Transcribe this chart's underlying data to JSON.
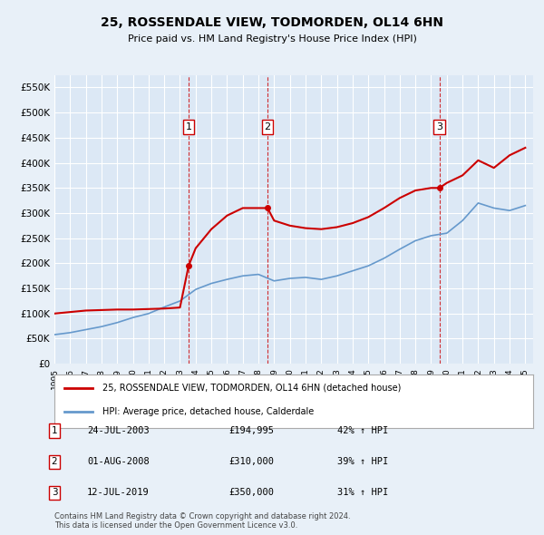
{
  "title": "25, ROSSENDALE VIEW, TODMORDEN, OL14 6HN",
  "subtitle": "Price paid vs. HM Land Registry's House Price Index (HPI)",
  "background_color": "#e8f0f8",
  "plot_bg_color": "#dce8f5",
  "grid_color": "#ffffff",
  "ylim": [
    0,
    575000
  ],
  "yticks": [
    0,
    50000,
    100000,
    150000,
    200000,
    250000,
    300000,
    350000,
    400000,
    450000,
    500000,
    550000
  ],
  "ytick_labels": [
    "£0",
    "£50K",
    "£100K",
    "£150K",
    "£200K",
    "£250K",
    "£300K",
    "£350K",
    "£400K",
    "£450K",
    "£500K",
    "£550K"
  ],
  "legend_line1": "25, ROSSENDALE VIEW, TODMORDEN, OL14 6HN (detached house)",
  "legend_line2": "HPI: Average price, detached house, Calderdale",
  "line1_color": "#cc0000",
  "line2_color": "#6699cc",
  "sale_marker_color": "#cc0000",
  "vline_color": "#cc0000",
  "vline_style": "--",
  "footnote": "Contains HM Land Registry data © Crown copyright and database right 2024.\nThis data is licensed under the Open Government Licence v3.0.",
  "sales": [
    {
      "num": 1,
      "date": "24-JUL-2003",
      "price": 194995,
      "pct": "42%",
      "dir": "↑",
      "x_year": 2003.55
    },
    {
      "num": 2,
      "date": "01-AUG-2008",
      "price": 310000,
      "pct": "39%",
      "dir": "↑",
      "x_year": 2008.58
    },
    {
      "num": 3,
      "date": "12-JUL-2019",
      "price": 350000,
      "pct": "31%",
      "dir": "↑",
      "x_year": 2019.53
    }
  ],
  "hpi_years": [
    1995,
    1996,
    1997,
    1998,
    1999,
    2000,
    2001,
    2002,
    2003,
    2004,
    2005,
    2006,
    2007,
    2008,
    2009,
    2010,
    2011,
    2012,
    2013,
    2014,
    2015,
    2016,
    2017,
    2018,
    2019,
    2020,
    2021,
    2022,
    2023,
    2024,
    2025
  ],
  "hpi_values": [
    58000,
    62000,
    68000,
    74000,
    82000,
    92000,
    100000,
    113000,
    125000,
    148000,
    160000,
    168000,
    175000,
    178000,
    165000,
    170000,
    172000,
    168000,
    175000,
    185000,
    195000,
    210000,
    228000,
    245000,
    255000,
    260000,
    285000,
    320000,
    310000,
    305000,
    315000
  ],
  "price_line_years": [
    1995,
    1996,
    1997,
    1998,
    1999,
    2000,
    2001,
    2002,
    2003,
    2003.55,
    2004,
    2005,
    2006,
    2007,
    2008,
    2008.58,
    2009,
    2010,
    2011,
    2012,
    2013,
    2014,
    2015,
    2016,
    2017,
    2018,
    2019,
    2019.53,
    2020,
    2021,
    2022,
    2023,
    2024,
    2025
  ],
  "price_line_values": [
    100000,
    103000,
    106000,
    107000,
    108000,
    108000,
    109000,
    110000,
    112000,
    194995,
    230000,
    268000,
    295000,
    310000,
    310000,
    310000,
    285000,
    275000,
    270000,
    268000,
    272000,
    280000,
    292000,
    310000,
    330000,
    345000,
    350000,
    350000,
    360000,
    375000,
    405000,
    390000,
    415000,
    430000
  ],
  "xtick_years": [
    1995,
    1996,
    1997,
    1998,
    1999,
    2000,
    2001,
    2002,
    2003,
    2004,
    2005,
    2006,
    2007,
    2008,
    2009,
    2010,
    2011,
    2012,
    2013,
    2014,
    2015,
    2016,
    2017,
    2018,
    2019,
    2020,
    2021,
    2022,
    2023,
    2024,
    2025
  ]
}
